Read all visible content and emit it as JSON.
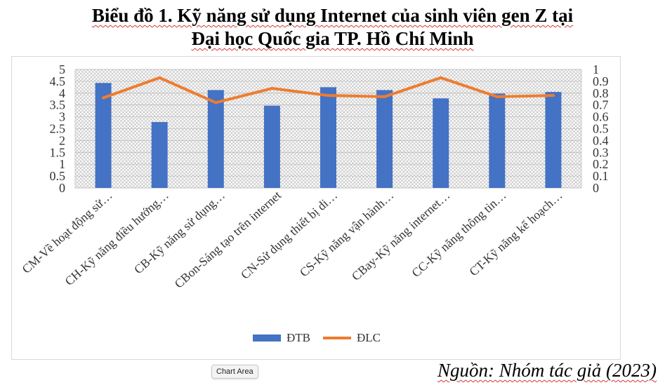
{
  "title": {
    "line1": "Biểu đồ 1. Kỹ năng sử dụng Internet của sinh viên gen Z tại",
    "line2": "Đại học Quốc gia TP. Hồ Chí Minh"
  },
  "tooltip": "Chart Area",
  "source": "Nguồn: Nhóm tác giả (2023)",
  "colors": {
    "bar": "#4472c4",
    "line": "#ed7d31",
    "grid": "#bfbfbf"
  },
  "chart_data": {
    "type": "bar",
    "categories": [
      "CM-Về hoạt động sử…",
      "CH-Kỹ năng điều hướng…",
      "CB-Kỹ năng sử dụng…",
      "CBon-Sáng tạo trên internet",
      "CN-Sử dụng thiết bị di…",
      "CS-Kỹ năng vận hành…",
      "CBay-Kỹ năng internet…",
      "CC-Kỹ năng thông tin…",
      "CT-Kỹ năng kế hoạch…"
    ],
    "series": [
      {
        "name": "ĐTB",
        "type": "bar",
        "axis": "left",
        "values": [
          4.43,
          2.78,
          4.13,
          3.47,
          4.25,
          4.13,
          3.78,
          3.98,
          4.05
        ]
      },
      {
        "name": "ĐLC",
        "type": "line",
        "axis": "right",
        "values": [
          0.76,
          0.93,
          0.72,
          0.84,
          0.78,
          0.77,
          0.93,
          0.77,
          0.78
        ]
      }
    ],
    "y_left": {
      "min": 0,
      "max": 5,
      "ticks": [
        "0",
        "0.5",
        "1",
        "1.5",
        "2",
        "2.5",
        "3",
        "3.5",
        "4",
        "4.5",
        "5"
      ]
    },
    "y_right": {
      "min": 0,
      "max": 1,
      "ticks": [
        "0",
        "0.1",
        "0.2",
        "0.3",
        "0.4",
        "0.5",
        "0.6",
        "0.7",
        "0.8",
        "0.9",
        "1"
      ]
    },
    "grid": true,
    "legend_position": "bottom"
  }
}
